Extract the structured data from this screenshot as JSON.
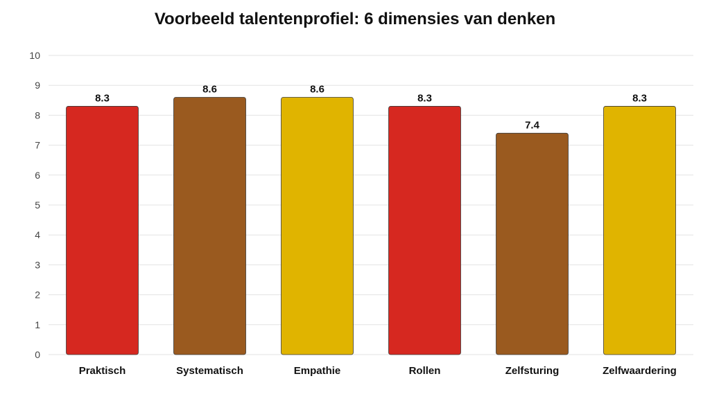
{
  "chart_data": {
    "type": "bar",
    "title": "Voorbeeld talentenprofiel: 6 dimensies van denken",
    "xlabel": "",
    "ylabel": "",
    "categories": [
      "Praktisch",
      "Systematisch",
      "Empathie",
      "Rollen",
      "Zelfsturing",
      "Zelfwaardering"
    ],
    "values": [
      8.3,
      8.6,
      8.6,
      8.3,
      7.4,
      8.3
    ],
    "data_labels": [
      "8.3",
      "8.6",
      "8.6",
      "8.3",
      "7.4",
      "8.3"
    ],
    "bar_colors": [
      "#d62820",
      "#9a5a1f",
      "#e0b400",
      "#d62820",
      "#9a5a1f",
      "#e0b400"
    ],
    "ylim": [
      0,
      10
    ],
    "y_ticks": [
      0,
      1,
      2,
      3,
      4,
      5,
      6,
      7,
      8,
      9,
      10
    ],
    "grid": true,
    "legend": "none"
  }
}
